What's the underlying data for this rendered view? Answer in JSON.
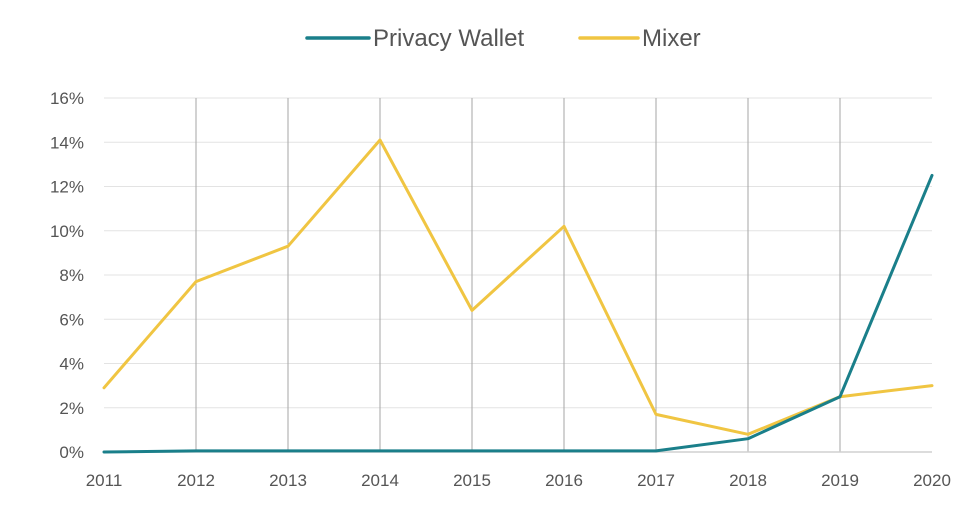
{
  "chart_data": {
    "type": "line",
    "title": "",
    "xlabel": "",
    "ylabel": "",
    "x": [
      "2011",
      "2012",
      "2013",
      "2014",
      "2015",
      "2016",
      "2017",
      "2018",
      "2019",
      "2020"
    ],
    "ylim": [
      0,
      16
    ],
    "y_ticks": [
      0,
      2,
      4,
      6,
      8,
      10,
      12,
      14,
      16
    ],
    "y_tick_labels": [
      "0%",
      "2%",
      "4%",
      "6%",
      "8%",
      "10%",
      "12%",
      "14%",
      "16%"
    ],
    "grid": {
      "horizontal": true,
      "vertical": true
    },
    "legend_position": "top-center",
    "series": [
      {
        "name": "Privacy Wallet",
        "color": "#1a7f8a",
        "values": [
          0.0,
          0.05,
          0.05,
          0.05,
          0.05,
          0.05,
          0.05,
          0.6,
          2.5,
          12.5
        ]
      },
      {
        "name": "Mixer",
        "color": "#f0c542",
        "values": [
          2.9,
          7.7,
          9.3,
          14.1,
          6.4,
          10.2,
          1.7,
          0.8,
          2.5,
          3.0
        ]
      }
    ]
  }
}
